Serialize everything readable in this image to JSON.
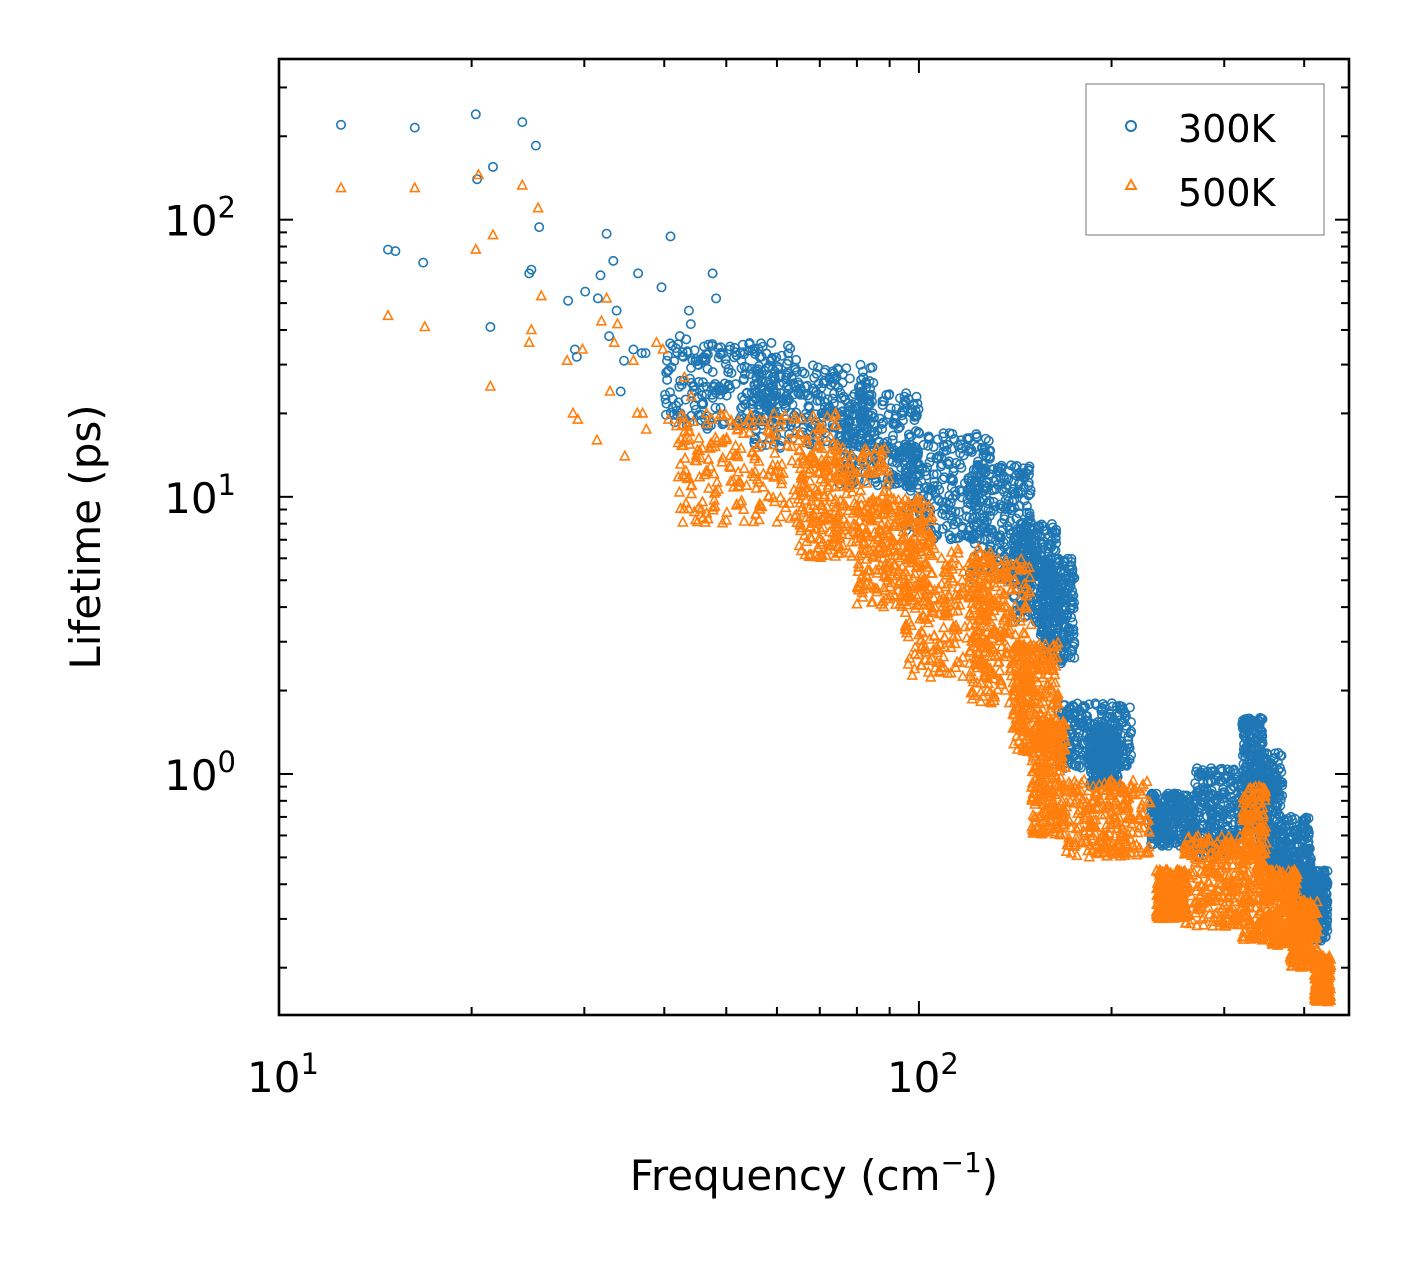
{
  "chart_data": {
    "type": "scatter",
    "title": "",
    "xlabel": "Frequency (cm",
    "xlabel_sup": "−1",
    "xlabel_tail": ")",
    "ylabel": "Lifetime (ps)",
    "xscale": "log",
    "yscale": "log",
    "xlim": [
      10,
      470
    ],
    "ylim": [
      0.135,
      380
    ],
    "x_ticks": [
      {
        "value": 10,
        "base": "10",
        "exp": "1"
      },
      {
        "value": 100,
        "base": "10",
        "exp": "2"
      }
    ],
    "y_ticks": [
      {
        "value": 1,
        "base": "10",
        "exp": "0"
      },
      {
        "value": 10,
        "base": "10",
        "exp": "1"
      },
      {
        "value": 100,
        "base": "10",
        "exp": "2"
      }
    ],
    "legend_position": "top-right",
    "series": [
      {
        "name": "300K",
        "color": "#1f77b4",
        "marker": "circle",
        "points": [
          [
            12.5,
            220
          ],
          [
            14.8,
            78
          ],
          [
            15.2,
            77
          ],
          [
            16.3,
            215
          ],
          [
            16.8,
            70
          ],
          [
            20.3,
            240
          ],
          [
            20.4,
            140
          ],
          [
            21.4,
            41
          ],
          [
            21.6,
            155
          ],
          [
            24.0,
            225
          ],
          [
            24.6,
            64
          ],
          [
            24.8,
            66
          ],
          [
            25.2,
            185
          ],
          [
            25.5,
            94
          ],
          [
            28.3,
            51
          ],
          [
            29.0,
            34
          ],
          [
            29.2,
            32
          ],
          [
            30.1,
            55
          ],
          [
            31.5,
            52
          ],
          [
            31.8,
            63
          ],
          [
            32.5,
            89
          ],
          [
            32.8,
            38
          ],
          [
            33.3,
            71
          ],
          [
            33.7,
            47
          ],
          [
            34.2,
            24
          ],
          [
            34.6,
            31
          ],
          [
            35.8,
            34
          ],
          [
            36.4,
            64
          ],
          [
            36.9,
            33
          ],
          [
            37.4,
            33
          ],
          [
            39.6,
            57
          ],
          [
            40.4,
            31
          ],
          [
            40.9,
            87
          ],
          [
            41.2,
            35
          ],
          [
            42.3,
            38
          ],
          [
            43.3,
            37
          ],
          [
            43.7,
            47
          ],
          [
            44.0,
            42
          ],
          [
            45.1,
            30
          ],
          [
            46.7,
            17.6
          ],
          [
            47.6,
            64
          ],
          [
            48.2,
            52
          ]
        ],
        "bands": [
          {
            "x": [
              40,
              65
            ],
            "y": [
              18,
              36
            ]
          },
          {
            "x": [
              55,
              85
            ],
            "y": [
              15,
              30
            ]
          },
          {
            "x": [
              75,
              100
            ],
            "y": [
              11,
              24
            ]
          },
          {
            "x": [
              95,
              130
            ],
            "y": [
              7,
              17
            ]
          },
          {
            "x": [
              120,
              150
            ],
            "y": [
              5,
              13
            ]
          },
          {
            "x": [
              140,
              165
            ],
            "y": [
              3.5,
              8
            ]
          },
          {
            "x": [
              155,
              175
            ],
            "y": [
              2.5,
              6
            ]
          },
          {
            "x": [
              165,
              215
            ],
            "y": [
              1.05,
              1.8
            ]
          },
          {
            "x": [
              185,
              205
            ],
            "y": [
              0.9,
              1.5
            ]
          },
          {
            "x": [
              230,
              270
            ],
            "y": [
              0.55,
              0.85
            ]
          },
          {
            "x": [
              270,
              320
            ],
            "y": [
              0.5,
              1.05
            ]
          },
          {
            "x": [
              320,
              345
            ],
            "y": [
              0.65,
              1.6
            ]
          },
          {
            "x": [
              340,
              370
            ],
            "y": [
              0.45,
              1.2
            ]
          },
          {
            "x": [
              370,
              410
            ],
            "y": [
              0.35,
              0.7
            ]
          },
          {
            "x": [
              400,
              435
            ],
            "y": [
              0.25,
              0.45
            ]
          }
        ]
      },
      {
        "name": "500K",
        "color": "#ff7f0e",
        "marker": "triangle",
        "points": [
          [
            12.5,
            130
          ],
          [
            14.8,
            45
          ],
          [
            16.3,
            130
          ],
          [
            16.9,
            41
          ],
          [
            20.3,
            78
          ],
          [
            20.5,
            145
          ],
          [
            21.4,
            25
          ],
          [
            21.6,
            88
          ],
          [
            24.0,
            133
          ],
          [
            24.6,
            36
          ],
          [
            24.8,
            40
          ],
          [
            25.4,
            110
          ],
          [
            25.7,
            53
          ],
          [
            28.2,
            31
          ],
          [
            28.8,
            20
          ],
          [
            29.3,
            19
          ],
          [
            29.8,
            34
          ],
          [
            31.4,
            16
          ],
          [
            31.9,
            43
          ],
          [
            32.5,
            52
          ],
          [
            32.9,
            24
          ],
          [
            33.4,
            36
          ],
          [
            33.8,
            42
          ],
          [
            34.7,
            14
          ],
          [
            35.8,
            31
          ],
          [
            36.3,
            20
          ],
          [
            37.0,
            20
          ],
          [
            37.5,
            17.5
          ],
          [
            38.9,
            36
          ],
          [
            39.8,
            34
          ],
          [
            40.6,
            19
          ],
          [
            41.8,
            18
          ],
          [
            43.0,
            27
          ],
          [
            44.1,
            23
          ],
          [
            46.2,
            12
          ]
        ],
        "bands": [
          {
            "x": [
              42,
              75
            ],
            "y": [
              8,
              20
            ]
          },
          {
            "x": [
              65,
              90
            ],
            "y": [
              6,
              15
            ]
          },
          {
            "x": [
              80,
              105
            ],
            "y": [
              4,
              10
            ]
          },
          {
            "x": [
              95,
              130
            ],
            "y": [
              2.2,
              7
            ]
          },
          {
            "x": [
              120,
              150
            ],
            "y": [
              1.8,
              6
            ]
          },
          {
            "x": [
              140,
              165
            ],
            "y": [
              1.2,
              3
            ]
          },
          {
            "x": [
              150,
              170
            ],
            "y": [
              0.6,
              1.6
            ]
          },
          {
            "x": [
              170,
              230
            ],
            "y": [
              0.5,
              0.95
            ]
          },
          {
            "x": [
              235,
              260
            ],
            "y": [
              0.3,
              0.45
            ]
          },
          {
            "x": [
              260,
              320
            ],
            "y": [
              0.28,
              0.6
            ]
          },
          {
            "x": [
              320,
              350
            ],
            "y": [
              0.25,
              0.9
            ]
          },
          {
            "x": [
              350,
              390
            ],
            "y": [
              0.24,
              0.45
            ]
          },
          {
            "x": [
              380,
              420
            ],
            "y": [
              0.2,
              0.35
            ]
          },
          {
            "x": [
              415,
              440
            ],
            "y": [
              0.15,
              0.22
            ]
          }
        ]
      }
    ]
  }
}
